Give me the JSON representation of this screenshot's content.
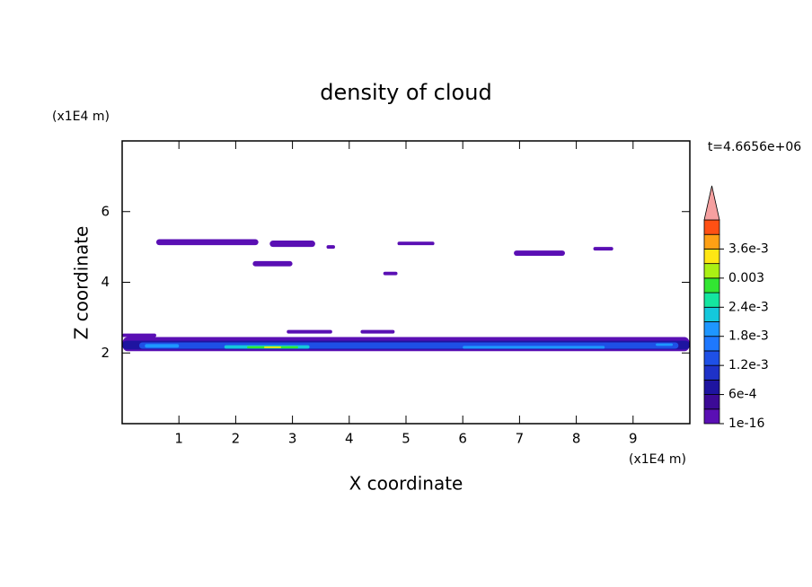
{
  "chart_data": {
    "type": "contour",
    "title": "density of cloud",
    "xlabel": "X coordinate",
    "ylabel": "Z coordinate",
    "xunit": "(x1E4 m)",
    "yunit": "(x1E4 m)",
    "time_label": "t=4.6656e+06",
    "xlim": [
      0,
      10
    ],
    "ylim": [
      0,
      8
    ],
    "xticks": [
      1,
      2,
      3,
      4,
      5,
      6,
      7,
      8,
      9
    ],
    "yticks": [
      2,
      4,
      6
    ],
    "levels": [
      1e-16,
      0.0003,
      0.0006,
      0.0009,
      0.0012,
      0.0015,
      0.0018,
      0.0021,
      0.0024,
      0.0027,
      0.003,
      0.0033,
      0.0036,
      0.0039,
      0.0042
    ],
    "colors": [
      "#5a0fb4",
      "#3c0a96",
      "#1e14a0",
      "#1e32c8",
      "#1e50e6",
      "#1e78ff",
      "#1e96ff",
      "#14c8dc",
      "#14e6a0",
      "#32e632",
      "#aaf014",
      "#ffe614",
      "#ffa014",
      "#ff5014"
    ],
    "over_color": "#f5a0a0",
    "colorbar_ticks": [
      {
        "value": 1e-16,
        "label": "1e-16"
      },
      {
        "value": 0.0006,
        "label": "6e-4"
      },
      {
        "value": 0.0012,
        "label": "1.2e-3"
      },
      {
        "value": 0.0018,
        "label": "1.8e-3"
      },
      {
        "value": 0.0024,
        "label": "2.4e-3"
      },
      {
        "value": 0.003,
        "label": "0.003"
      },
      {
        "value": 0.0036,
        "label": "3.6e-3"
      }
    ],
    "patches": [
      {
        "x": [
          0.6,
          2.4
        ],
        "z": [
          5.05,
          5.22
        ],
        "value": 0.0001
      },
      {
        "x": [
          2.6,
          3.4
        ],
        "z": [
          5.0,
          5.18
        ],
        "value": 0.0001
      },
      {
        "x": [
          3.6,
          3.75
        ],
        "z": [
          4.95,
          5.05
        ],
        "value": 0.0001
      },
      {
        "x": [
          2.3,
          3.0
        ],
        "z": [
          4.45,
          4.6
        ],
        "value": 0.0001
      },
      {
        "x": [
          4.6,
          4.85
        ],
        "z": [
          4.2,
          4.3
        ],
        "value": 0.0001
      },
      {
        "x": [
          4.85,
          5.5
        ],
        "z": [
          5.05,
          5.15
        ],
        "value": 0.0001
      },
      {
        "x": [
          6.9,
          7.8
        ],
        "z": [
          4.75,
          4.9
        ],
        "value": 0.0001
      },
      {
        "x": [
          8.3,
          8.65
        ],
        "z": [
          4.9,
          5.0
        ],
        "value": 0.0001
      },
      {
        "x": [
          0.0,
          0.6
        ],
        "z": [
          2.45,
          2.55
        ],
        "value": 0.0001
      },
      {
        "x": [
          2.9,
          3.7
        ],
        "z": [
          2.55,
          2.65
        ],
        "value": 0.0001
      },
      {
        "x": [
          4.2,
          4.8
        ],
        "z": [
          2.55,
          2.65
        ],
        "value": 0.0001
      },
      {
        "x": [
          0.0,
          10.0
        ],
        "z": [
          2.05,
          2.45
        ],
        "value": 0.0002
      },
      {
        "x": [
          0.0,
          10.0
        ],
        "z": [
          2.1,
          2.35
        ],
        "value": 0.0007
      },
      {
        "x": [
          0.3,
          9.8
        ],
        "z": [
          2.12,
          2.3
        ],
        "value": 0.0013
      },
      {
        "x": [
          0.4,
          1.0
        ],
        "z": [
          2.15,
          2.25
        ],
        "value": 0.002
      },
      {
        "x": [
          1.8,
          3.3
        ],
        "z": [
          2.12,
          2.22
        ],
        "value": 0.0022
      },
      {
        "x": [
          6.0,
          8.5
        ],
        "z": [
          2.12,
          2.2
        ],
        "value": 0.0019
      },
      {
        "x": [
          9.4,
          9.7
        ],
        "z": [
          2.2,
          2.27
        ],
        "value": 0.0019
      },
      {
        "x": [
          2.2,
          3.1
        ],
        "z": [
          2.13,
          2.19
        ],
        "value": 0.0028
      },
      {
        "x": [
          2.5,
          2.8
        ],
        "z": [
          2.14,
          2.18
        ],
        "value": 0.0034
      }
    ]
  }
}
